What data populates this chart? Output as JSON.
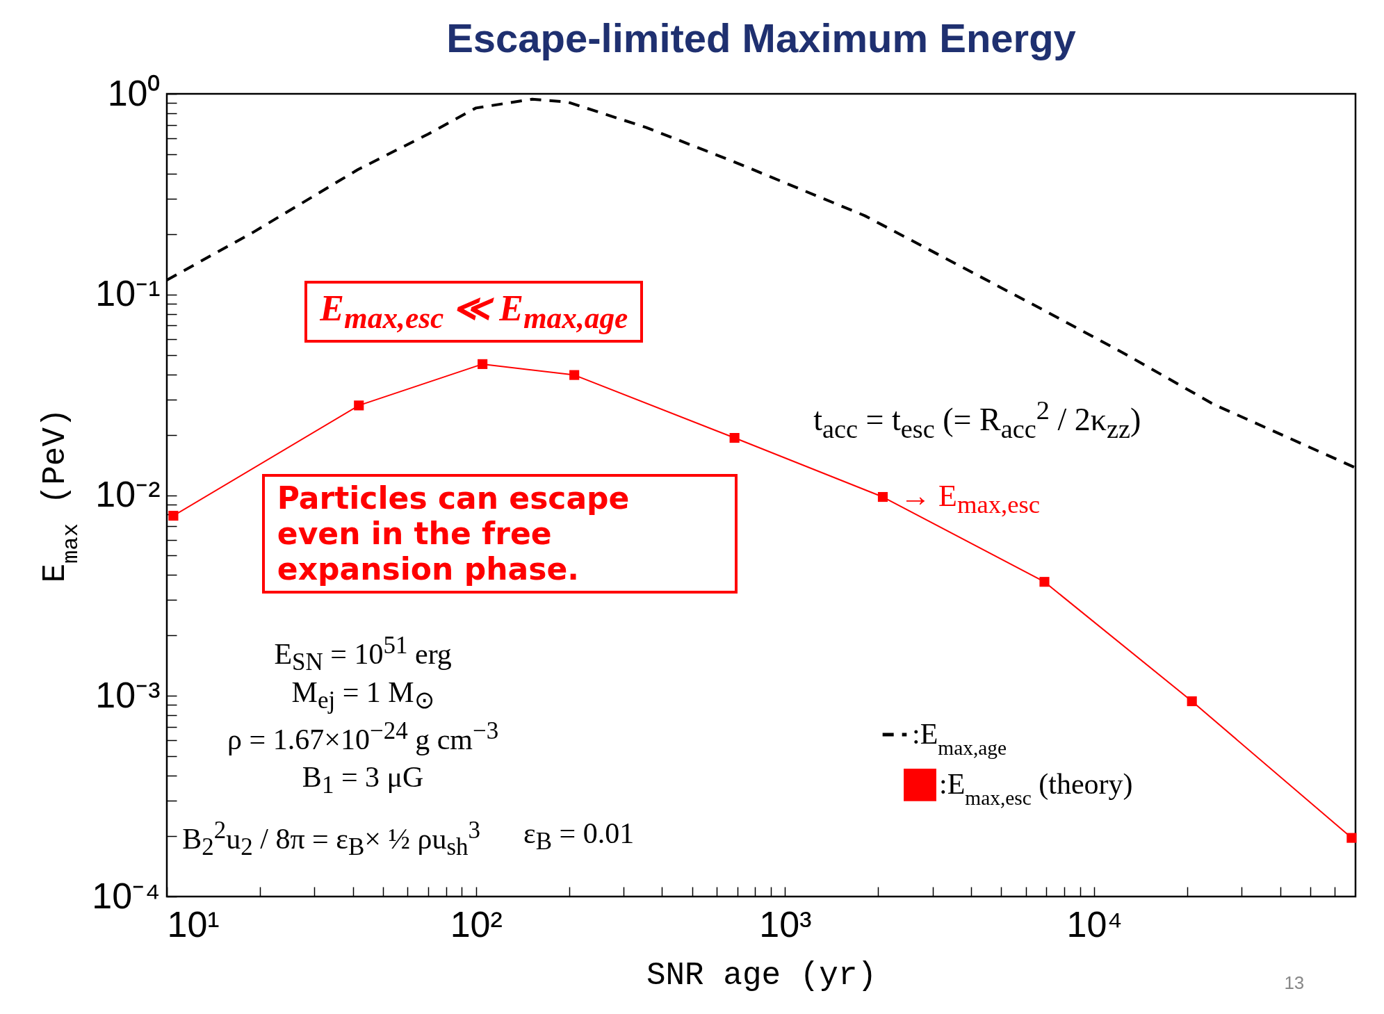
{
  "chart_data": {
    "type": "line",
    "title": "Escape-limited Maximum Energy",
    "xlabel": "SNR age (yr)",
    "ylabel": "E$_{max}$ (PeV)",
    "log": "xy",
    "grid": false,
    "legend": "bottom right",
    "xlim": [
      10,
      70000
    ],
    "xticks": [
      {
        "value": 10,
        "label": "10¹"
      },
      {
        "value": 20,
        "label": null
      },
      {
        "value": 30,
        "label": null
      },
      {
        "value": 40,
        "label": null
      },
      {
        "value": 50,
        "label": null
      },
      {
        "value": 60,
        "label": null
      },
      {
        "value": 70,
        "label": null
      },
      {
        "value": 80,
        "label": null
      },
      {
        "value": 90,
        "label": null
      },
      {
        "value": 100,
        "label": "10²"
      },
      {
        "value": 200,
        "label": null
      },
      {
        "value": 300,
        "label": null
      },
      {
        "value": 400,
        "label": null
      },
      {
        "value": 500,
        "label": null
      },
      {
        "value": 600,
        "label": null
      },
      {
        "value": 700,
        "label": null
      },
      {
        "value": 800,
        "label": null
      },
      {
        "value": 900,
        "label": null
      },
      {
        "value": 1000,
        "label": "10³"
      },
      {
        "value": 2000,
        "label": null
      },
      {
        "value": 3000,
        "label": null
      },
      {
        "value": 4000,
        "label": null
      },
      {
        "value": 5000,
        "label": null
      },
      {
        "value": 6000,
        "label": null
      },
      {
        "value": 7000,
        "label": null
      },
      {
        "value": 8000,
        "label": null
      },
      {
        "value": 9000,
        "label": null
      },
      {
        "value": 10000,
        "label": "10⁴"
      },
      {
        "value": 20000,
        "label": null
      },
      {
        "value": 30000,
        "label": null
      },
      {
        "value": 40000,
        "label": null
      },
      {
        "value": 50000,
        "label": null
      },
      {
        "value": 60000,
        "label": null
      }
    ],
    "ylim": [
      0.0001,
      1
    ],
    "yticks": [
      {
        "value": 0.0001,
        "label": "10⁻⁴"
      },
      {
        "value": 0.0002,
        "label": null
      },
      {
        "value": 0.0003,
        "label": null
      },
      {
        "value": 0.0004,
        "label": null
      },
      {
        "value": 0.0005,
        "label": null
      },
      {
        "value": 0.0006,
        "label": null
      },
      {
        "value": 0.0007,
        "label": null
      },
      {
        "value": 0.0008,
        "label": null
      },
      {
        "value": 0.0009,
        "label": null
      },
      {
        "value": 0.001,
        "label": "10⁻³"
      },
      {
        "value": 0.002,
        "label": null
      },
      {
        "value": 0.003,
        "label": null
      },
      {
        "value": 0.004,
        "label": null
      },
      {
        "value": 0.005,
        "label": null
      },
      {
        "value": 0.006,
        "label": null
      },
      {
        "value": 0.007,
        "label": null
      },
      {
        "value": 0.008,
        "label": null
      },
      {
        "value": 0.009,
        "label": null
      },
      {
        "value": 0.01,
        "label": "10⁻²"
      },
      {
        "value": 0.02,
        "label": null
      },
      {
        "value": 0.03,
        "label": null
      },
      {
        "value": 0.04,
        "label": null
      },
      {
        "value": 0.05,
        "label": null
      },
      {
        "value": 0.06,
        "label": null
      },
      {
        "value": 0.07,
        "label": null
      },
      {
        "value": 0.08,
        "label": null
      },
      {
        "value": 0.09,
        "label": null
      },
      {
        "value": 0.1,
        "label": "10⁻¹"
      },
      {
        "value": 0.2,
        "label": null
      },
      {
        "value": 0.3,
        "label": null
      },
      {
        "value": 0.4,
        "label": null
      },
      {
        "value": 0.5,
        "label": null
      },
      {
        "value": 0.6,
        "label": null
      },
      {
        "value": 0.7,
        "label": null
      },
      {
        "value": 0.8,
        "label": null
      },
      {
        "value": 0.9,
        "label": null
      },
      {
        "value": 1,
        "label": "10⁰"
      }
    ],
    "series": [
      {
        "name": ":E$_{max,age}$",
        "color": "#000000",
        "line_style": "dashed",
        "marker": "none",
        "x": [
          10,
          19,
          41.6,
          70,
          100,
          152,
          198,
          355,
          680,
          1810,
          6650,
          12600,
          24400,
          70000
        ],
        "values": [
          0.118,
          0.204,
          0.42,
          0.63,
          0.85,
          0.94,
          0.91,
          0.68,
          0.46,
          0.247,
          0.0857,
          0.0505,
          0.0283,
          0.0137
        ]
      },
      {
        "name": ":E$_{max,esc}$ (theory)",
        "color": "#ff0000",
        "line_style": "solid",
        "marker": "square",
        "x": [
          10.5,
          41.8,
          105,
          208,
          686,
          2070,
          6900,
          20700,
          68000
        ],
        "values": [
          0.0079,
          0.028,
          0.045,
          0.0397,
          0.0193,
          0.0098,
          0.0037,
          0.00094,
          0.000196
        ]
      }
    ],
    "annotations": [
      "E$_{max,esc}$ ≪ E$_{max,age}$",
      "Particles can escape even in the free expansion phase.",
      "t$_{acc}$ = t$_{esc}$ (= R$_{acc}$$^{2}$ / 2κ$_{zz}$)",
      "→ E$_{max,esc}$",
      "E$_{SN}$ = 10$^{51}$ erg",
      "M$_{ej}$ = 1 M$_{⊙}$",
      "ρ = 1.67×10$^{−24}$ g cm$^{−3}$",
      "B$_{1}$ = 3 μG",
      "B$_{2}$$^{2}$u$_{2}$ / 8π = ε$_{B}$× ½ ρu$_{sh}$$^{3}$",
      "ε$_{B}$ = 0.01",
      "13"
    ]
  }
}
